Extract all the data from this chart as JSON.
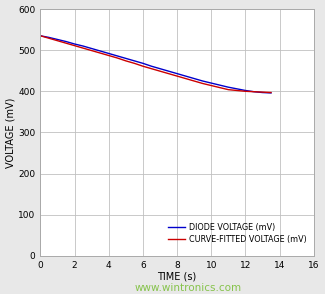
{
  "title": "",
  "xlabel": "TIME (s)",
  "ylabel": "VOLTAGE (mV)",
  "xlim": [
    0,
    16
  ],
  "ylim": [
    0,
    600
  ],
  "xticks": [
    0,
    2,
    4,
    6,
    8,
    10,
    12,
    14,
    16
  ],
  "yticks": [
    0,
    100,
    200,
    300,
    400,
    500,
    600
  ],
  "diode_color": "#0000cc",
  "fitted_color": "#cc0000",
  "diode_label": "DIODE VOLTAGE (mV)",
  "fitted_label": "CURVE-FITTED VOLTAGE (mV)",
  "diode_x": [
    0,
    0.5,
    1,
    1.5,
    2,
    2.5,
    3,
    3.5,
    4,
    4.5,
    5,
    5.5,
    6,
    6.5,
    7,
    7.5,
    8,
    8.5,
    9,
    9.5,
    10,
    10.5,
    11,
    11.5,
    12,
    12.5,
    13,
    13.5
  ],
  "diode_y": [
    535,
    531,
    526,
    521,
    515,
    510,
    504,
    498,
    492,
    486,
    480,
    474,
    468,
    461,
    455,
    449,
    443,
    437,
    431,
    425,
    420,
    415,
    410,
    406,
    402,
    399,
    397,
    396
  ],
  "fitted_x": [
    0,
    0.5,
    1,
    1.5,
    2,
    2.5,
    3,
    3.5,
    4,
    4.5,
    5,
    5.5,
    6,
    6.5,
    7,
    7.5,
    8,
    8.5,
    9,
    9.5,
    10,
    10.5,
    11,
    11.5,
    12,
    12.5,
    13,
    13.5
  ],
  "fitted_y": [
    535,
    529,
    523,
    517,
    511,
    505,
    499,
    493,
    487,
    481,
    474,
    468,
    461,
    455,
    449,
    443,
    437,
    431,
    425,
    419,
    414,
    409,
    404,
    402,
    400,
    399,
    398,
    397
  ],
  "line_width": 1.0,
  "legend_fontsize": 5.8,
  "axis_label_fontsize": 7.0,
  "tick_fontsize": 6.5,
  "grid_color": "#c0c0c0",
  "plot_bg_color": "#ffffff",
  "fig_bg_color": "#e8e8e8",
  "watermark": "www.wintronics.com",
  "watermark_color": "#7bbf3a",
  "watermark_fontsize": 7.5
}
